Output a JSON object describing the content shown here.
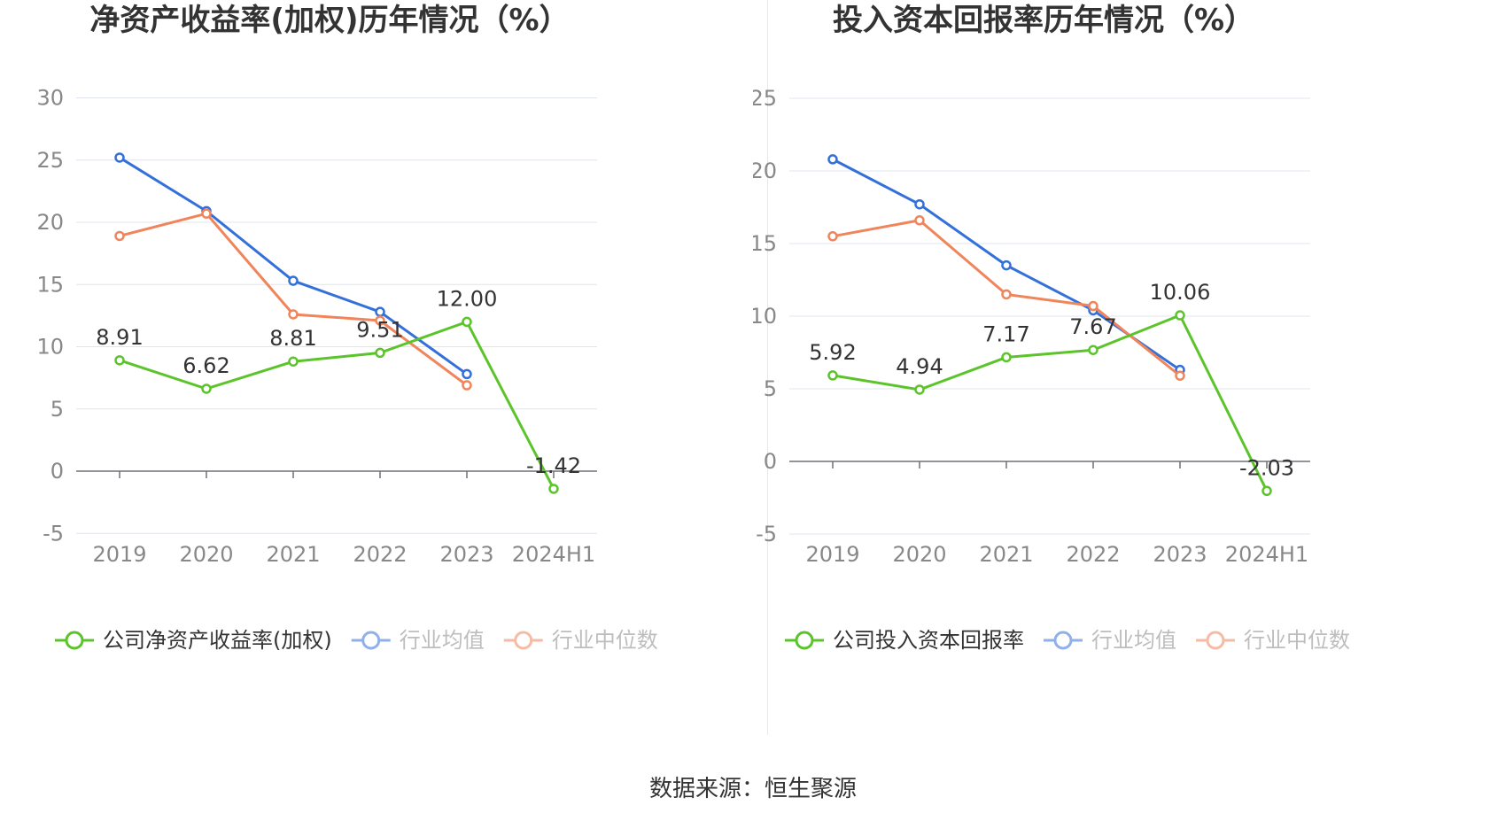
{
  "colors": {
    "company": "#5cc42b",
    "average": "#3470d9",
    "median": "#f0845a"
  },
  "source": "数据来源：恒生聚源",
  "chart_data": [
    {
      "type": "line",
      "title": "净资产收益率(加权)历年情况（%）",
      "categories": [
        "2019",
        "2020",
        "2021",
        "2022",
        "2023",
        "2024H1"
      ],
      "ylim": [
        -5,
        30
      ],
      "yticks": [
        -5,
        0,
        5,
        10,
        15,
        20,
        25,
        30
      ],
      "series": [
        {
          "name": "公司净资产收益率(加权)",
          "role": "company",
          "values": [
            8.91,
            6.62,
            8.81,
            9.51,
            12.0,
            -1.42
          ],
          "labels": [
            "8.91",
            "6.62",
            "8.81",
            "9.51",
            "12.00",
            "-1.42"
          ]
        },
        {
          "name": "行业均值",
          "role": "average",
          "values": [
            25.2,
            20.9,
            15.3,
            12.8,
            7.8,
            null
          ]
        },
        {
          "name": "行业中位数",
          "role": "median",
          "values": [
            18.9,
            20.7,
            12.6,
            12.1,
            6.9,
            null
          ]
        }
      ]
    },
    {
      "type": "line",
      "title": "投入资本回报率历年情况（%）",
      "categories": [
        "2019",
        "2020",
        "2021",
        "2022",
        "2023",
        "2024H1"
      ],
      "ylim": [
        -5,
        25
      ],
      "yticks": [
        -5,
        0,
        5,
        10,
        15,
        20,
        25
      ],
      "series": [
        {
          "name": "公司投入资本回报率",
          "role": "company",
          "values": [
            5.92,
            4.94,
            7.17,
            7.67,
            10.06,
            -2.03
          ],
          "labels": [
            "5.92",
            "4.94",
            "7.17",
            "7.67",
            "10.06",
            "-2.03"
          ]
        },
        {
          "name": "行业均值",
          "role": "average",
          "values": [
            20.8,
            17.7,
            13.5,
            10.4,
            6.3,
            null
          ]
        },
        {
          "name": "行业中位数",
          "role": "median",
          "values": [
            15.5,
            16.6,
            11.5,
            10.7,
            5.9,
            null
          ]
        }
      ]
    }
  ]
}
